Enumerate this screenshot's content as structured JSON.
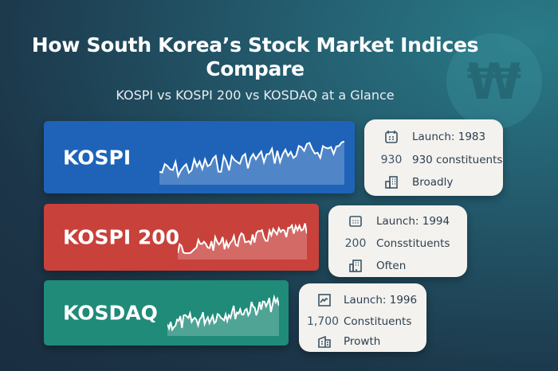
{
  "title": "How South Korea’s Stock Market Indices Compare",
  "subtitle": "KOSPI vs KOSPI 200 vs KOSDAQ at a Glance",
  "currency_symbol": "₩",
  "indices": [
    {
      "name": "KOSPI",
      "color": "#1f63b8",
      "launch": "Launch: 1983",
      "count": "930",
      "constituents": "930 constituents",
      "note": "Broadly"
    },
    {
      "name": "KOSPI 200",
      "color": "#c8413b",
      "launch": "Launch: 1994",
      "count": "200",
      "constituents": "Consstituents",
      "note": "Often"
    },
    {
      "name": "KOSDAQ",
      "color": "#1f8b78",
      "launch": "Launch: 1996",
      "count": "1,700",
      "constituents": "Constituents",
      "note": "Prowth"
    }
  ]
}
